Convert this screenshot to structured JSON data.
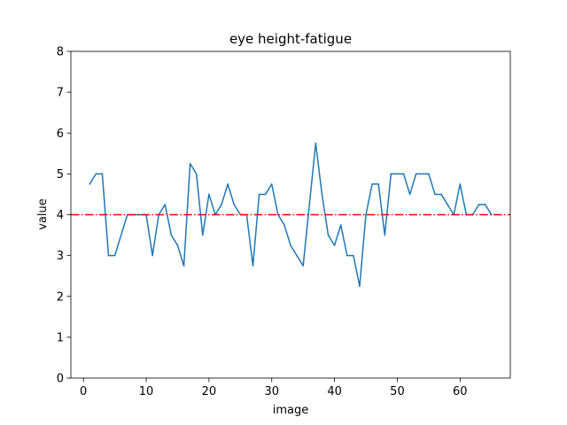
{
  "chart_data": {
    "type": "line",
    "title": "eye height-fatigue",
    "xlabel": "image",
    "ylabel": "value",
    "xlim": [
      -2,
      68
    ],
    "ylim": [
      0,
      8
    ],
    "xticks": [
      0,
      10,
      20,
      30,
      40,
      50,
      60
    ],
    "yticks": [
      0,
      1,
      2,
      3,
      4,
      5,
      6,
      7,
      8
    ],
    "grid": false,
    "series": [
      {
        "color": "#1f77b4",
        "x": [
          1,
          2,
          3,
          4,
          5,
          6,
          7,
          8,
          9,
          10,
          11,
          12,
          13,
          14,
          15,
          16,
          17,
          18,
          19,
          20,
          21,
          22,
          23,
          24,
          25,
          26,
          27,
          28,
          29,
          30,
          31,
          32,
          33,
          34,
          35,
          36,
          37,
          38,
          39,
          40,
          41,
          42,
          43,
          44,
          45,
          46,
          47,
          48,
          49,
          50,
          51,
          52,
          53,
          54,
          55,
          56,
          57,
          58,
          59,
          60,
          61,
          62,
          63,
          64,
          65
        ],
        "values": [
          4.75,
          5.0,
          5.0,
          3.0,
          3.0,
          3.5,
          4.0,
          4.0,
          4.0,
          4.0,
          3.0,
          4.0,
          4.25,
          3.5,
          3.25,
          2.75,
          5.25,
          5.0,
          3.5,
          4.5,
          4.0,
          4.25,
          4.75,
          4.25,
          4.0,
          4.0,
          2.75,
          4.5,
          4.5,
          4.75,
          4.0,
          3.75,
          3.25,
          3.0,
          2.75,
          4.25,
          5.75,
          4.5,
          3.5,
          3.25,
          3.75,
          3.0,
          3.0,
          2.25,
          4.0,
          4.75,
          4.75,
          3.5,
          5.0,
          5.0,
          5.0,
          4.5,
          5.0,
          5.0,
          5.0,
          4.5,
          4.5,
          4.25,
          4.0,
          4.75,
          4.0,
          4.0,
          4.25,
          4.25,
          4.0
        ]
      }
    ],
    "reference_line": {
      "y": 4,
      "color": "#ff0000",
      "style": "dash-dot"
    }
  }
}
